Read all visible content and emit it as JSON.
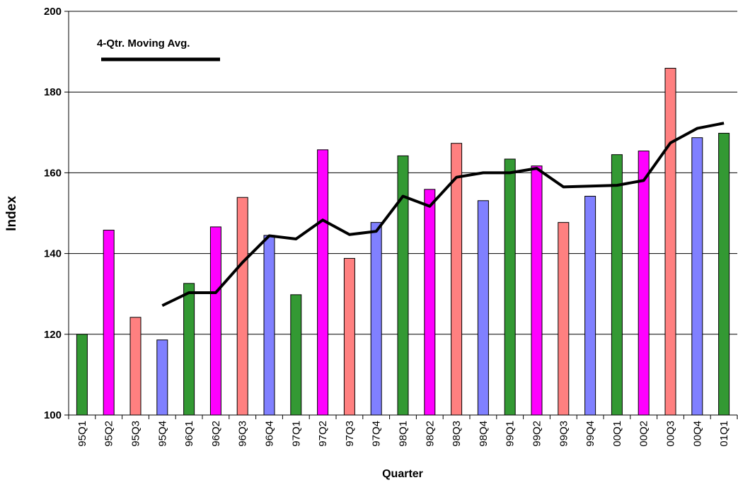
{
  "chart_data": {
    "type": "bar",
    "y_label": "Index",
    "x_label": "Quarter",
    "categories": [
      "95Q1",
      "95Q2",
      "95Q3",
      "95Q4",
      "96Q1",
      "96Q2",
      "96Q3",
      "96Q4",
      "97Q1",
      "97Q2",
      "97Q3",
      "97Q4",
      "98Q1",
      "98Q2",
      "98Q3",
      "98Q4",
      "99Q1",
      "99Q2",
      "99Q3",
      "99Q4",
      "00Q1",
      "00Q2",
      "00Q3",
      "00Q4",
      "01Q1"
    ],
    "series": [
      {
        "type": "bar",
        "colors": [
          "#339933",
          "#ff00ff",
          "#ff8080",
          "#8080ff",
          "#339933",
          "#ff00ff",
          "#ff8080",
          "#8080ff",
          "#339933",
          "#ff00ff",
          "#ff8080",
          "#8080ff",
          "#339933",
          "#ff00ff",
          "#ff8080",
          "#8080ff",
          "#339933",
          "#ff00ff",
          "#ff8080",
          "#8080ff",
          "#339933",
          "#ff00ff",
          "#ff8080",
          "#8080ff",
          "#339933"
        ],
        "values": [
          120,
          145.8,
          124.2,
          118.6,
          132.6,
          146.6,
          153.9,
          144.5,
          129.8,
          165.7,
          138.8,
          147.7,
          164.2,
          155.9,
          167.3,
          153.1,
          163.4,
          161.7,
          147.7,
          154.2,
          164.5,
          165.4,
          185.9,
          168.7,
          169.8
        ]
      },
      {
        "type": "line",
        "name": "4-Qtr. Moving Avg.",
        "color": "#000000",
        "values": [
          null,
          null,
          null,
          127.1,
          130.3,
          130.3,
          137.8,
          144.4,
          143.6,
          148.3,
          144.7,
          145.5,
          154.2,
          151.7,
          158.9,
          160.0,
          160.0,
          161.1,
          156.5,
          156.7,
          156.9,
          158.1,
          167.4,
          171.0,
          172.3
        ]
      }
    ],
    "ylim": [
      100,
      200
    ],
    "yticks": [
      100,
      120,
      140,
      160,
      180,
      200
    ],
    "grid": true,
    "legend": "top-left"
  }
}
